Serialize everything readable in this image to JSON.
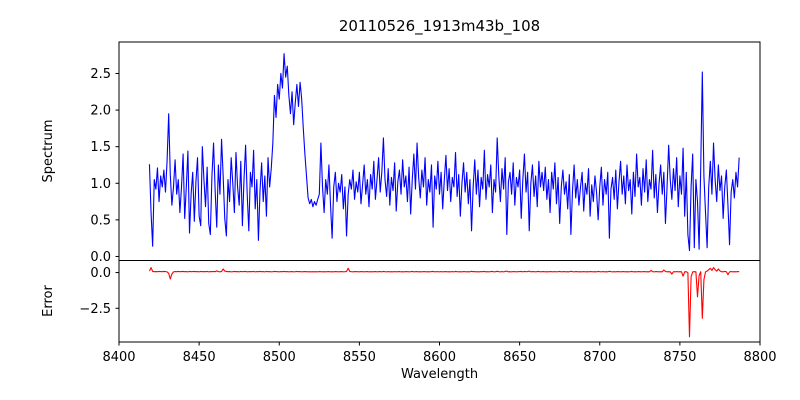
{
  "figure": {
    "background": "#ffffff",
    "axis_color": "#000000"
  },
  "chart_data": {
    "type": "line",
    "title": "20110526_1913m43b_108",
    "xlabel": "Wavelength",
    "xlim": [
      8400,
      8800
    ],
    "x_ticks": [
      8400,
      8450,
      8500,
      8550,
      8600,
      8650,
      8700,
      8750,
      8800
    ],
    "x_tick_labels": [
      "8400",
      "8450",
      "8500",
      "8550",
      "8600",
      "8650",
      "8700",
      "8750",
      "8800"
    ],
    "x_start": 8419,
    "x_step": 1,
    "legend": "none",
    "grid": false,
    "panels": [
      {
        "name": "spectrum",
        "ylabel": "Spectrum",
        "color": "#0000ff",
        "ylim": [
          -0.055,
          2.93
        ],
        "y_ticks": [
          0.0,
          0.5,
          1.0,
          1.5,
          2.0,
          2.5
        ],
        "y_tick_labels": [
          "0.0",
          "0.5",
          "1.0",
          "1.5",
          "2.0",
          "2.5"
        ],
        "values": [
          1.26,
          0.6,
          0.14,
          1.05,
          0.92,
          1.21,
          0.75,
          1.1,
          0.95,
          1.18,
          0.88,
          1.3,
          1.95,
          1.12,
          0.7,
          0.95,
          1.32,
          0.85,
          1.05,
          0.6,
          0.95,
          1.4,
          0.52,
          0.95,
          1.44,
          0.32,
          0.85,
          1.15,
          0.48,
          1.02,
          1.35,
          0.55,
          0.42,
          1.5,
          1.05,
          0.68,
          1.22,
          0.45,
          0.3,
          1.1,
          1.55,
          0.9,
          0.4,
          1.25,
          0.85,
          1.6,
          1.1,
          0.52,
          0.28,
          1.05,
          0.75,
          1.35,
          1.0,
          0.6,
          1.42,
          0.95,
          0.7,
          1.3,
          0.42,
          1.05,
          1.52,
          0.85,
          0.35,
          1.15,
          0.95,
          1.45,
          0.65,
          1.05,
          0.22,
          0.9,
          1.28,
          0.75,
          1.1,
          0.55,
          1.35,
          0.95,
          1.2,
          1.55,
          2.2,
          1.9,
          2.35,
          2.15,
          2.5,
          2.3,
          2.77,
          2.45,
          2.6,
          2.2,
          1.95,
          2.25,
          1.8,
          2.1,
          2.35,
          2.05,
          2.38,
          2.15,
          1.75,
          1.4,
          1.1,
          0.8,
          0.72,
          0.78,
          0.68,
          0.75,
          0.7,
          0.78,
          0.85,
          1.55,
          0.95,
          0.6,
          1.05,
          0.85,
          1.25,
          0.7,
          0.25,
          0.95,
          1.15,
          0.75,
          1.0,
          0.88,
          1.12,
          0.65,
          0.95,
          0.28,
          0.85,
          1.05,
          0.92,
          1.18,
          0.78,
          1.02,
          0.88,
          1.15,
          0.72,
          0.98,
          1.25,
          0.85,
          1.05,
          0.68,
          1.12,
          0.92,
          1.3,
          0.78,
          1.05,
          1.35,
          0.88,
          1.15,
          1.62,
          1.05,
          0.82,
          1.2,
          0.7,
          1.08,
          0.9,
          1.28,
          0.62,
          1.02,
          1.18,
          0.85,
          1.32,
          0.95,
          1.1,
          0.75,
          1.22,
          0.58,
          1.05,
          1.4,
          0.92,
          1.55,
          1.08,
          0.8,
          1.18,
          0.95,
          1.35,
          0.7,
          1.05,
          0.88,
          1.25,
          0.4,
          1.1,
          0.92,
          1.3,
          0.85,
          1.15,
          0.65,
          1.05,
          1.38,
          0.9,
          1.2,
          0.75,
          1.08,
          0.95,
          1.42,
          0.82,
          1.12,
          0.55,
          1.0,
          1.28,
          0.88,
          1.15,
          0.72,
          1.05,
          0.35,
          0.95,
          1.32,
          0.85,
          1.18,
          0.68,
          1.08,
          0.92,
          1.45,
          0.78,
          1.12,
          0.95,
          1.25,
          0.6,
          1.05,
          0.88,
          1.62,
          1.1,
          0.75,
          1.2,
          0.92,
          1.35,
          0.3,
          1.02,
          1.15,
          0.85,
          1.28,
          0.7,
          1.08,
          0.95,
          1.18,
          0.52,
          1.05,
          1.4,
          0.88,
          1.15,
          0.35,
          1.0,
          1.25,
          0.82,
          1.1,
          0.68,
          1.3,
          0.95,
          1.15,
          0.9,
          1.22,
          0.78,
          1.05,
          0.6,
          1.15,
          0.92,
          1.28,
          0.72,
          1.08,
          0.45,
          0.95,
          1.18,
          0.85,
          1.02,
          0.65,
          1.12,
          0.3,
          0.9,
          1.25,
          0.8,
          1.05,
          0.7,
          0.95,
          1.15,
          0.62,
          1.0,
          0.85,
          1.2,
          0.55,
          0.98,
          0.75,
          1.1,
          0.88,
          0.5,
          0.95,
          1.22,
          0.7,
          1.05,
          0.85,
          1.15,
          0.25,
          0.92,
          1.08,
          0.78,
          1.18,
          0.65,
          1.02,
          1.3,
          0.85,
          1.1,
          0.72,
          1.25,
          0.9,
          1.05,
          0.58,
          1.15,
          0.82,
          1.4,
          0.95,
          1.08,
          0.7,
          1.2,
          0.88,
          1.32,
          0.75,
          1.05,
          0.92,
          1.45,
          0.8,
          1.12,
          0.6,
          1.0,
          1.25,
          0.85,
          1.15,
          0.45,
          0.95,
          1.52,
          1.05,
          0.78,
          1.2,
          0.9,
          1.35,
          0.68,
          1.1,
          0.85,
          1.48,
          0.55,
          1.15,
          0.3,
          0.08,
          0.95,
          1.4,
          0.12,
          1.05,
          0.75,
          0.1,
          1.2,
          2.52,
          1.1,
          0.6,
          0.12,
          0.95,
          1.3,
          0.85,
          1.55,
          1.05,
          0.75,
          1.25,
          0.9,
          1.1,
          0.52,
          0.95,
          1.18,
          0.7,
          0.16,
          0.88,
          1.05,
          0.8,
          1.15,
          0.95,
          1.35
        ]
      },
      {
        "name": "error",
        "ylabel": "Error",
        "color": "#ff0000",
        "ylim": [
          -4.86,
          0.845
        ],
        "y_ticks": [
          0.0,
          -2.5
        ],
        "y_tick_labels": [
          "0.0",
          "−2.5"
        ],
        "values": [
          0.1,
          0.35,
          0.08,
          0.06,
          0.07,
          0.06,
          0.08,
          0.07,
          0.06,
          0.08,
          0.07,
          0.05,
          -0.05,
          -0.45,
          -0.1,
          0.05,
          0.07,
          0.06,
          0.08,
          0.06,
          0.07,
          0.08,
          0.06,
          0.07,
          0.05,
          0.08,
          0.06,
          0.07,
          0.08,
          0.06,
          0.07,
          0.05,
          0.08,
          0.06,
          0.07,
          0.06,
          0.08,
          0.05,
          0.07,
          0.06,
          0.08,
          0.06,
          0.12,
          0.07,
          0.05,
          0.08,
          0.25,
          0.1,
          0.08,
          0.06,
          0.07,
          0.05,
          0.06,
          0.08,
          0.06,
          0.07,
          0.05,
          0.08,
          0.06,
          0.07,
          0.08,
          0.05,
          0.06,
          0.07,
          0.06,
          0.08,
          0.05,
          0.07,
          0.06,
          0.08,
          0.06,
          0.07,
          0.05,
          0.08,
          0.06,
          0.07,
          0.05,
          0.06,
          0.08,
          0.07,
          0.06,
          0.05,
          0.07,
          0.06,
          0.08,
          0.06,
          0.07,
          0.05,
          0.06,
          0.07,
          0.05,
          0.06,
          0.08,
          0.06,
          0.07,
          0.05,
          0.06,
          0.07,
          0.06,
          0.05,
          0.06,
          0.05,
          0.06,
          0.05,
          0.06,
          0.05,
          0.07,
          0.06,
          0.05,
          0.06,
          0.05,
          0.06,
          0.07,
          0.05,
          0.06,
          0.05,
          0.07,
          0.06,
          0.05,
          0.06,
          0.07,
          0.05,
          0.06,
          0.08,
          0.3,
          0.08,
          0.06,
          0.05,
          0.07,
          0.06,
          0.06,
          0.05,
          0.07,
          0.06,
          0.05,
          0.06,
          0.07,
          0.05,
          0.06,
          0.05,
          0.06,
          0.07,
          0.05,
          0.06,
          0.07,
          0.05,
          0.08,
          0.06,
          0.05,
          0.07,
          0.05,
          0.06,
          0.05,
          0.07,
          0.05,
          0.06,
          0.07,
          0.05,
          0.06,
          0.05,
          0.07,
          0.06,
          0.05,
          0.06,
          0.08,
          0.05,
          0.06,
          0.07,
          0.05,
          0.06,
          0.05,
          0.07,
          0.06,
          0.05,
          0.06,
          0.05,
          0.07,
          0.08,
          0.05,
          0.06,
          0.06,
          0.05,
          0.07,
          0.05,
          0.06,
          0.07,
          0.05,
          0.06,
          0.05,
          0.07,
          0.05,
          0.08,
          0.06,
          0.05,
          0.06,
          0.05,
          0.07,
          0.06,
          0.05,
          0.06,
          0.05,
          0.09,
          0.06,
          0.07,
          0.05,
          0.06,
          0.05,
          0.07,
          0.06,
          0.08,
          0.05,
          0.06,
          0.05,
          0.07,
          0.08,
          0.05,
          0.06,
          0.09,
          0.06,
          0.05,
          0.07,
          0.05,
          0.08,
          0.1,
          0.05,
          0.06,
          0.05,
          0.07,
          0.06,
          0.05,
          0.06,
          0.07,
          0.08,
          0.05,
          0.08,
          0.06,
          0.07,
          0.1,
          0.05,
          0.07,
          0.06,
          0.05,
          0.07,
          0.08,
          0.05,
          0.06,
          0.07,
          0.05,
          0.06,
          0.05,
          0.07,
          0.06,
          0.05,
          0.07,
          0.05,
          0.06,
          0.08,
          0.05,
          0.06,
          0.07,
          0.05,
          0.06,
          0.05,
          0.09,
          0.06,
          0.05,
          0.07,
          0.06,
          0.05,
          0.06,
          0.05,
          0.07,
          0.05,
          0.06,
          0.05,
          0.07,
          0.06,
          0.05,
          0.06,
          0.05,
          0.08,
          0.06,
          0.05,
          0.07,
          0.05,
          0.06,
          0.05,
          0.09,
          0.06,
          0.05,
          0.06,
          0.05,
          0.07,
          0.06,
          0.05,
          0.06,
          0.07,
          0.05,
          0.06,
          0.05,
          0.06,
          0.08,
          0.05,
          0.06,
          0.05,
          0.07,
          0.06,
          0.05,
          0.06,
          0.07,
          0.05,
          0.06,
          0.05,
          0.15,
          0.06,
          0.05,
          0.07,
          0.06,
          0.05,
          0.06,
          0.05,
          0.18,
          0.08,
          0.05,
          0.06,
          0.05,
          -0.1,
          0.06,
          0.05,
          0.07,
          0.05,
          0.06,
          0.05,
          -0.25,
          0.05,
          0.06,
          0.0,
          -4.5,
          -0.3,
          0.05,
          0.06,
          0.05,
          -1.7,
          -0.2,
          0.06,
          -3.2,
          -0.5,
          0.05,
          0.1,
          0.2,
          0.3,
          0.15,
          0.35,
          0.2,
          0.1,
          0.25,
          0.12,
          0.06,
          0.05,
          0.08,
          0.06,
          -0.15,
          0.05,
          0.07,
          0.05,
          0.06,
          0.05,
          0.07,
          0.06
        ]
      }
    ]
  }
}
